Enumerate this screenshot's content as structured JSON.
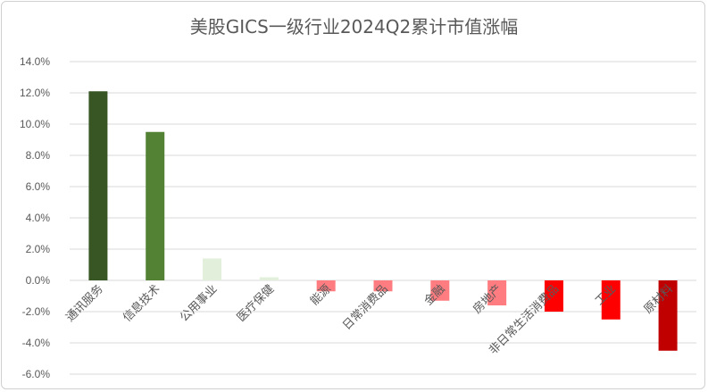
{
  "chart_data": {
    "type": "bar",
    "title": "美股GICS一级行业2024Q2累计市值涨幅",
    "categories": [
      "通讯服务",
      "信息技术",
      "公用事业",
      "医疗保健",
      "能源",
      "日常消费品",
      "金融",
      "房地产",
      "非日常生活消费品",
      "工业",
      "原材料"
    ],
    "values": [
      12.1,
      9.5,
      1.4,
      0.2,
      -0.7,
      -0.7,
      -1.3,
      -1.6,
      -2.0,
      -2.5,
      -4.5
    ],
    "colors": [
      "#375623",
      "#548235",
      "#e2efda",
      "#e2efda",
      "#ff7c80",
      "#ff7c80",
      "#ff7c80",
      "#ff7c80",
      "#ff0000",
      "#ff0000",
      "#c00000"
    ],
    "ylim": [
      -6,
      14
    ],
    "yticks": [
      "-6.0%",
      "-4.0%",
      "-2.0%",
      "0.0%",
      "2.0%",
      "4.0%",
      "6.0%",
      "8.0%",
      "10.0%",
      "12.0%",
      "14.0%"
    ],
    "xlabel": "",
    "ylabel": "",
    "grid": true,
    "legend": "none"
  }
}
